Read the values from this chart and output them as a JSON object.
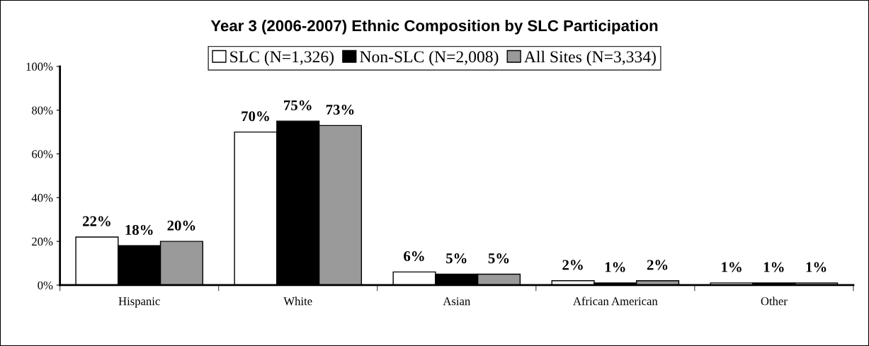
{
  "chart_data": {
    "type": "bar",
    "title": "Year 3 (2006-2007) Ethnic Composition by SLC Participation",
    "categories": [
      "Hispanic",
      "White",
      "Asian",
      "African American",
      "Other"
    ],
    "series": [
      {
        "name": "SLC (N=1,326)",
        "color": "#ffffff",
        "values": [
          22,
          70,
          6,
          2,
          1
        ],
        "value_labels": [
          "22%",
          "70%",
          "6%",
          "2%",
          "1%"
        ]
      },
      {
        "name": "Non-SLC (N=2,008)",
        "color": "#000000",
        "values": [
          18,
          75,
          5,
          1,
          1
        ],
        "value_labels": [
          "18%",
          "75%",
          "5%",
          "1%",
          "1%"
        ]
      },
      {
        "name": "All Sites (N=3,334)",
        "color": "#9a9a9a",
        "values": [
          20,
          73,
          5,
          2,
          1
        ],
        "value_labels": [
          "20%",
          "73%",
          "5%",
          "2%",
          "1%"
        ]
      }
    ],
    "ylim": [
      0,
      100
    ],
    "yticks": [
      {
        "value": 0,
        "label": "0%"
      },
      {
        "value": 20,
        "label": "20%"
      },
      {
        "value": 40,
        "label": "40%"
      },
      {
        "value": 60,
        "label": "60%"
      },
      {
        "value": 80,
        "label": "80%"
      },
      {
        "value": 100,
        "label": "100%"
      }
    ],
    "grid": false,
    "legend": "top"
  }
}
